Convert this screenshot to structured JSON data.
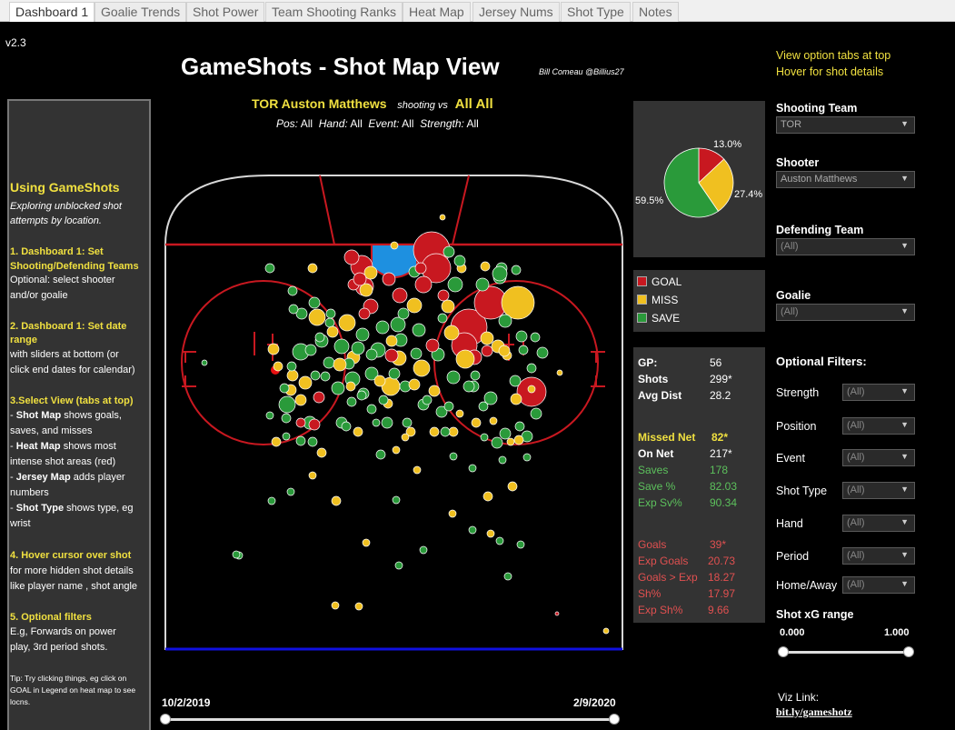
{
  "tabs": [
    "Dashboard 1",
    "Goalie Trends",
    "Shot Power",
    "Team Shooting Ranks",
    "Heat Map",
    "Jersey Nums",
    "Shot Type",
    "Notes"
  ],
  "version": "v2.3",
  "title": "GameShots  - Shot Map View",
  "byline": "Bill Comeau @Billius27",
  "hints": [
    "View option  tabs at top",
    "Hover for shot details"
  ],
  "subtitle": {
    "player": "TOR Auston Matthews",
    "shooting_vs": "shooting vs",
    "vs": "All All"
  },
  "filterline": {
    "pos_label": "Pos:",
    "pos": "All",
    "hand_label": "Hand:",
    "hand": "All",
    "event_label": "Event:",
    "event": "All",
    "strength_label": "Strength:",
    "strength": "All"
  },
  "help": {
    "heading": "Using GameShots",
    "intro": [
      "Exploring unblocked shot",
      "attempts by location."
    ],
    "s1": [
      "1. Dashboard 1: Set",
      "Shooting/Defending Teams"
    ],
    "s1b": [
      "  Optional: select shooter",
      "and/or goalie"
    ],
    "s2": [
      "2. Dashboard 1: Set date",
      "range"
    ],
    "s2b": [
      "  with  sliders at bottom (or",
      "click end dates for calendar)"
    ],
    "s3": "3.Select View (tabs at top)",
    "s3b": [
      [
        "- ",
        "Shot Map",
        " shows goals,"
      ],
      [
        "saves, and misses",
        "",
        ""
      ],
      [
        "- ",
        "Heat Map",
        " shows most"
      ],
      [
        "intense shot areas (red)",
        "",
        ""
      ],
      [
        "- ",
        "Jersey Map",
        " adds player"
      ],
      [
        "numbers",
        "",
        ""
      ],
      [
        "- ",
        "Shot Type",
        " shows type, eg"
      ],
      [
        "wrist",
        "",
        ""
      ]
    ],
    "s4": "4. Hover cursor over shot",
    "s4b": [
      "  for more hidden shot details",
      "like player name , shot angle"
    ],
    "s5": "5. Optional filters",
    "s5b": [
      "  E.g, Forwards  on power",
      "play, 3rd period shots."
    ],
    "tip": [
      "Tip: Try clicking things, eg click on",
      "GOAL in Legend on heat map to see",
      "locns."
    ]
  },
  "pie": {
    "labels": [
      "13.0%",
      "27.4%",
      "59.5%"
    ],
    "values": [
      13.0,
      27.4,
      59.5
    ],
    "colors": [
      "#c81820",
      "#f0c020",
      "#2a9a3a"
    ]
  },
  "legend": [
    {
      "label": "GOAL",
      "color": "#c81820"
    },
    {
      "label": "MISS",
      "color": "#f0c020"
    },
    {
      "label": "SAVE",
      "color": "#2a9a3a"
    }
  ],
  "stats": {
    "gp_label": "GP:",
    "gp": "56",
    "shots_label": "Shots",
    "shots": "299*",
    "avgdist_label": "Avg Dist",
    "avgdist": "28.2",
    "missed_label": "Missed Net",
    "missed": "82*",
    "onnet_label": "On Net",
    "onnet": "217*",
    "saves_label": "Saves",
    "saves": "178",
    "savepct_label": "Save %",
    "savepct": "82.03",
    "expsv_label": "Exp Sv%",
    "expsv": "90.34",
    "goals_label": "Goals",
    "goals": "39*",
    "expgoals_label": "Exp Goals",
    "expgoals": "20.73",
    "gmexp_label": "Goals > Exp",
    "gmexp": "18.27",
    "shpct_label": "Sh%",
    "shpct": "17.97",
    "expsh_label": "Exp Sh%",
    "expsh": "9.66"
  },
  "filters": {
    "shooting_team_label": "Shooting Team",
    "shooting_team": "TOR",
    "shooter_label": "Shooter",
    "shooter": "Auston Matthews",
    "defending_team_label": "Defending Team",
    "defending_team": "(All)",
    "goalie_label": "Goalie",
    "goalie": "(All)",
    "optional_label": "Optional Filters:",
    "strength_label": "Strength",
    "strength": "(All)",
    "position_label": "Position",
    "position": "(All)",
    "event_label": "Event",
    "event": "(All)",
    "shot_type_label": "Shot Type",
    "shot_type": "(All)",
    "hand_label": "Hand",
    "hand": "(All)",
    "period_label": "Period",
    "period": "(All)",
    "home_away_label": "Home/Away",
    "home_away": "(All)",
    "xg_label": "Shot xG range",
    "xg_min": "0.000",
    "xg_max": "1.000"
  },
  "dates": {
    "start": "10/2/2019",
    "end": "2/9/2020"
  },
  "viz_link_label": "Viz Link:",
  "viz_link": "bit.ly/gameshotz"
}
